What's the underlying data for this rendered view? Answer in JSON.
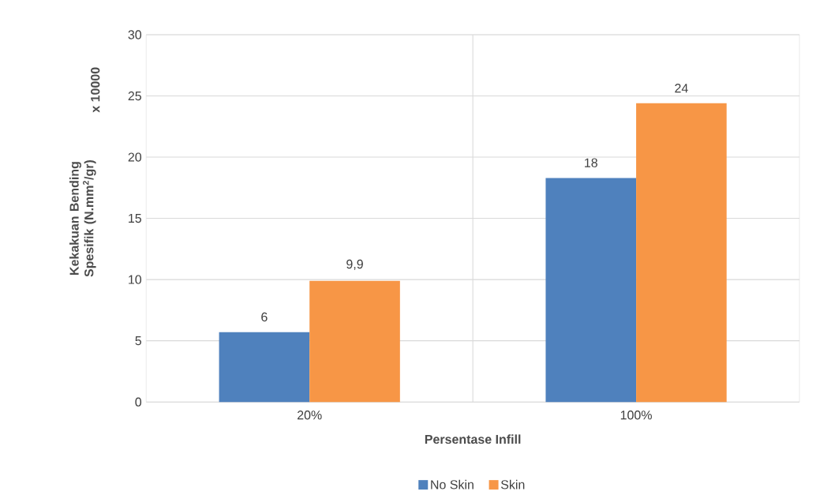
{
  "chart_data": {
    "type": "bar",
    "xlabel": "Persentase Infill",
    "ylabel": "Kekakuan Bending Spesifik (N.mm$^{2}$/gr)",
    "annotations": [
      "x 10000"
    ],
    "categories": [
      "20%",
      "100%"
    ],
    "series": [
      {
        "name": "No Skin",
        "color": "#4f81bd",
        "values": [
          5.7,
          18.3
        ],
        "value_labels": [
          "6",
          "18"
        ]
      },
      {
        "name": "Skin",
        "color": "#f79646",
        "values": [
          9.9,
          24.4
        ],
        "value_labels": [
          "9,9",
          "24"
        ]
      }
    ],
    "ylim": [
      0,
      30
    ],
    "yticks": [
      0,
      5,
      10,
      15,
      20,
      25,
      30
    ],
    "grid": true,
    "legend": "bottom"
  }
}
